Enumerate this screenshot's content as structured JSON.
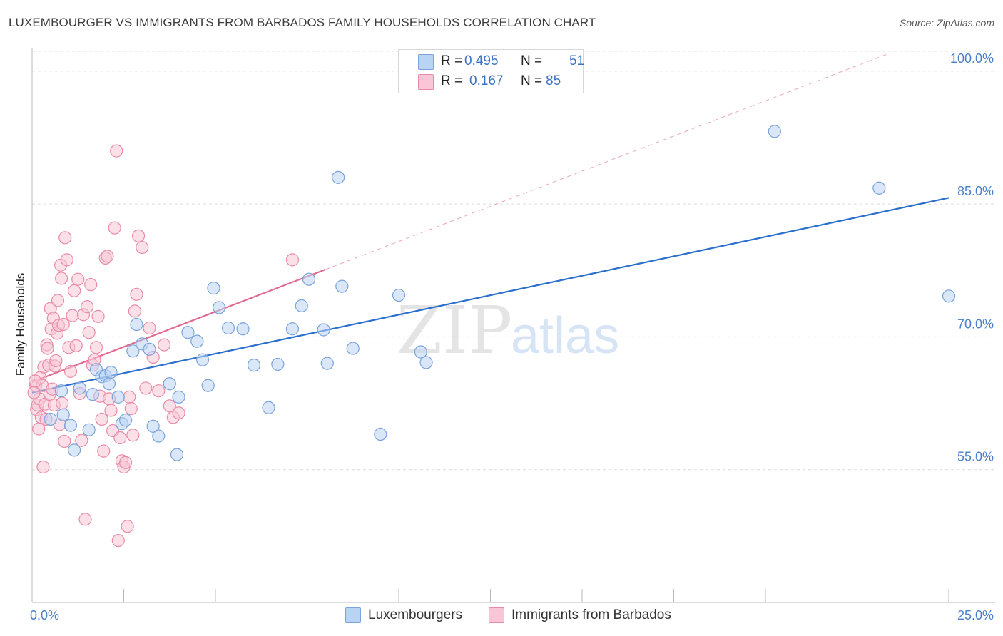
{
  "title": "LUXEMBOURGER VS IMMIGRANTS FROM BARBADOS FAMILY HOUSEHOLDS CORRELATION CHART",
  "source": "Source: ZipAtlas.com",
  "watermark": {
    "zip": "ZIP",
    "atlas": "atlas"
  },
  "legend": {
    "r_label": "R =",
    "n_label": "N =",
    "series1": {
      "r": "0.495",
      "n": "51"
    },
    "series2": {
      "r": "0.167",
      "n": "85"
    }
  },
  "colors": {
    "blue_fill": "#b9d3f3",
    "blue_stroke": "#7aa3db",
    "blue_line": "#2a6fcc",
    "pink_fill": "#f8c6d6",
    "pink_stroke": "#e98aa8",
    "pink_line": "#e06a92",
    "axis_text": "#4a7fc9",
    "grid": "#dcdcdc"
  },
  "chart_data": {
    "type": "scatter",
    "title": "LUXEMBOURGER VS IMMIGRANTS FROM BARBADOS FAMILY HOUSEHOLDS CORRELATION CHART",
    "xlabel": "",
    "ylabel": "Family Households",
    "xlim": [
      0,
      25
    ],
    "ylim": [
      40,
      102
    ],
    "x_tick_labels": [
      "0.0%",
      "25.0%"
    ],
    "y_ticks": [
      55,
      70,
      85,
      100
    ],
    "y_tick_labels": [
      "55.0%",
      "70.0%",
      "85.0%",
      "100.0%"
    ],
    "legend_position": "top-center",
    "series": [
      {
        "name": "Luxembourgers",
        "color": "#7aa3db",
        "trend": {
          "x": [
            0,
            25
          ],
          "y": [
            63.7,
            85.7
          ]
        },
        "x": [
          0.5,
          0.85,
          1.05,
          1.15,
          1.3,
          1.55,
          1.65,
          1.75,
          1.9,
          2.0,
          2.1,
          2.15,
          2.35,
          2.45,
          2.55,
          2.75,
          2.85,
          3.0,
          3.2,
          3.3,
          3.45,
          3.75,
          3.95,
          4.0,
          4.25,
          4.5,
          4.65,
          4.8,
          4.95,
          5.1,
          5.35,
          5.75,
          6.05,
          6.45,
          6.7,
          7.1,
          7.35,
          7.55,
          7.95,
          8.05,
          8.35,
          8.45,
          8.75,
          9.5,
          10.0,
          10.6,
          10.75,
          20.25,
          23.1,
          25.0,
          0.8
        ],
        "y": [
          60.7,
          61.2,
          60.0,
          57.2,
          64.2,
          59.5,
          63.5,
          66.3,
          65.5,
          65.6,
          64.7,
          66.0,
          63.2,
          60.2,
          60.6,
          68.4,
          71.4,
          69.2,
          68.6,
          59.9,
          58.8,
          64.7,
          56.7,
          63.2,
          70.5,
          69.5,
          67.4,
          64.5,
          75.5,
          73.3,
          71.0,
          70.9,
          66.8,
          62.0,
          66.9,
          70.9,
          73.5,
          76.5,
          70.8,
          67.0,
          88.0,
          75.7,
          68.7,
          59.0,
          74.7,
          68.3,
          67.1,
          93.2,
          86.8,
          74.6,
          63.9
        ]
      },
      {
        "name": "Immigrants from Barbados",
        "color": "#e98aa8",
        "trend": {
          "x": [
            0,
            8
          ],
          "y": [
            64.9,
            77.6
          ]
        },
        "x": [
          0.1,
          0.12,
          0.15,
          0.18,
          0.2,
          0.22,
          0.25,
          0.28,
          0.3,
          0.32,
          0.35,
          0.38,
          0.4,
          0.42,
          0.45,
          0.48,
          0.5,
          0.52,
          0.55,
          0.58,
          0.6,
          0.62,
          0.65,
          0.68,
          0.7,
          0.72,
          0.75,
          0.78,
          0.8,
          0.82,
          0.85,
          0.88,
          0.9,
          0.95,
          1.0,
          1.05,
          1.1,
          1.15,
          1.2,
          1.25,
          1.3,
          1.35,
          1.4,
          1.45,
          1.5,
          1.55,
          1.6,
          1.65,
          1.7,
          1.75,
          1.8,
          1.85,
          1.9,
          1.95,
          2.0,
          2.05,
          2.1,
          2.15,
          2.2,
          2.25,
          2.3,
          2.35,
          2.4,
          2.45,
          2.5,
          2.55,
          2.6,
          2.65,
          2.7,
          2.75,
          2.8,
          2.85,
          2.9,
          3.0,
          3.1,
          3.2,
          3.3,
          3.45,
          3.6,
          3.75,
          3.85,
          4.0,
          7.1,
          0.05,
          0.08
        ],
        "y": [
          64.5,
          61.8,
          62.3,
          59.6,
          63.0,
          65.4,
          60.9,
          64.5,
          55.3,
          66.6,
          62.4,
          60.7,
          69.1,
          68.7,
          66.8,
          63.5,
          73.2,
          70.9,
          64.1,
          72.1,
          62.3,
          66.7,
          67.3,
          70.4,
          74.1,
          71.3,
          60.1,
          78.1,
          76.6,
          62.5,
          71.4,
          58.2,
          81.2,
          78.7,
          68.8,
          66.1,
          72.4,
          75.2,
          69.0,
          76.5,
          63.6,
          58.3,
          72.5,
          49.4,
          73.4,
          70.5,
          75.9,
          66.8,
          67.4,
          68.8,
          72.3,
          63.3,
          60.7,
          57.1,
          78.9,
          79.1,
          63.0,
          61.7,
          59.4,
          82.3,
          91.0,
          47.0,
          58.6,
          56.0,
          55.3,
          55.8,
          48.6,
          63.2,
          61.9,
          58.9,
          72.9,
          74.8,
          81.4,
          80.1,
          64.2,
          71.0,
          67.7,
          63.9,
          69.1,
          62.2,
          60.9,
          61.4,
          78.7,
          63.7,
          65.0
        ]
      }
    ]
  },
  "bottom_legend": {
    "series1": "Luxembourgers",
    "series2": "Immigrants from Barbados"
  }
}
